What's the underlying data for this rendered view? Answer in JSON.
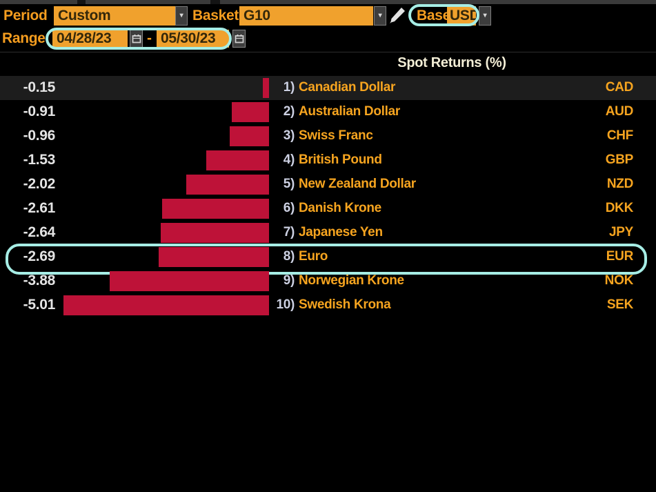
{
  "toolbar": {
    "period_label": "Period",
    "period_value": "Custom",
    "basket_label": "Basket",
    "basket_value": "G10",
    "base_label": "Base",
    "base_value": "USD",
    "dropdown_glyph": "▾"
  },
  "range": {
    "label": "Range",
    "start": "04/28/23",
    "separator": "-",
    "end": "05/30/23"
  },
  "table": {
    "title": "Spot Returns (%)"
  },
  "rows": [
    {
      "rank": "1)",
      "value": -0.15,
      "display": "-0.15",
      "name": "Canadian Dollar",
      "code": "CAD",
      "selected": true,
      "highlighted": false
    },
    {
      "rank": "2)",
      "value": -0.91,
      "display": "-0.91",
      "name": "Australian Dollar",
      "code": "AUD",
      "selected": false,
      "highlighted": false
    },
    {
      "rank": "3)",
      "value": -0.96,
      "display": "-0.96",
      "name": "Swiss Franc",
      "code": "CHF",
      "selected": false,
      "highlighted": false
    },
    {
      "rank": "4)",
      "value": -1.53,
      "display": "-1.53",
      "name": "British Pound",
      "code": "GBP",
      "selected": false,
      "highlighted": false
    },
    {
      "rank": "5)",
      "value": -2.02,
      "display": "-2.02",
      "name": "New Zealand Dollar",
      "code": "NZD",
      "selected": false,
      "highlighted": false
    },
    {
      "rank": "6)",
      "value": -2.61,
      "display": "-2.61",
      "name": "Danish Krone",
      "code": "DKK",
      "selected": false,
      "highlighted": false
    },
    {
      "rank": "7)",
      "value": -2.64,
      "display": "-2.64",
      "name": "Japanese Yen",
      "code": "JPY",
      "selected": false,
      "highlighted": false
    },
    {
      "rank": "8)",
      "value": -2.69,
      "display": "-2.69",
      "name": "Euro",
      "code": "EUR",
      "selected": false,
      "highlighted": true
    },
    {
      "rank": "9)",
      "value": -3.88,
      "display": "-3.88",
      "name": "Norwegian Krone",
      "code": "NOK",
      "selected": false,
      "highlighted": false
    },
    {
      "rank": "10)",
      "value": -5.01,
      "display": "-5.01",
      "name": "Swedish Krona",
      "code": "SEK",
      "selected": false,
      "highlighted": false
    }
  ],
  "chart_data": {
    "type": "bar",
    "orientation": "horizontal",
    "title": "Spot Returns (%)",
    "categories": [
      "Canadian Dollar",
      "Australian Dollar",
      "Swiss Franc",
      "British Pound",
      "New Zealand Dollar",
      "Danish Krone",
      "Japanese Yen",
      "Euro",
      "Norwegian Krone",
      "Swedish Krona"
    ],
    "codes": [
      "CAD",
      "AUD",
      "CHF",
      "GBP",
      "NZD",
      "DKK",
      "JPY",
      "EUR",
      "NOK",
      "SEK"
    ],
    "values": [
      -0.15,
      -0.91,
      -0.96,
      -1.53,
      -2.02,
      -2.61,
      -2.64,
      -2.69,
      -3.88,
      -5.01
    ],
    "xlim": [
      -5.5,
      0
    ],
    "bar_color": "#be1238",
    "grid": false,
    "legend": false,
    "annotations": [
      "cyan circle around Base USD control",
      "cyan circle around Range dates 04/28/23 - 05/30/23",
      "cyan circle around Euro row"
    ]
  },
  "colors": {
    "accent_orange_box": "#f0a12d",
    "label_orange": "#f59d1f",
    "bar_red": "#be1238",
    "highlight_cyan": "#a6ede5",
    "value_white": "#e4e4e4",
    "title_cream": "#f3eed6",
    "selected_row_bg": "#1d1d1d",
    "background": "#000000"
  }
}
